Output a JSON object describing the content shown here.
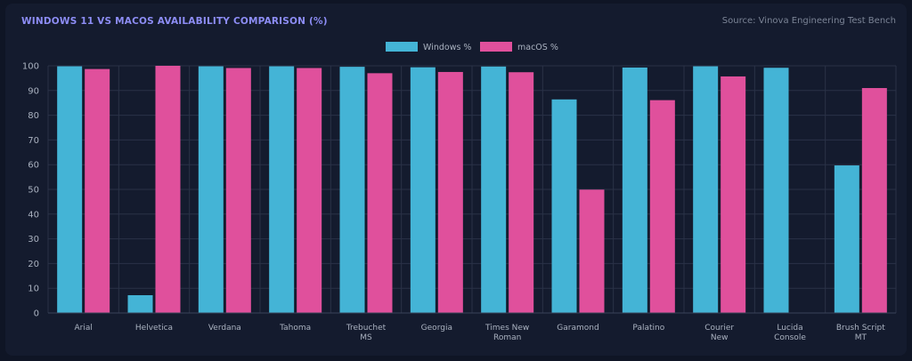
{
  "header": {
    "title": "WINDOWS 11 VS MACOS AVAILABILITY COMPARISON (%)",
    "source": "Source: Vinova Engineering Test Bench"
  },
  "colors": {
    "background": "#141b2e",
    "windows": "#44b4d6",
    "macos": "#e0509c",
    "grid": "#2a3247",
    "text": "#aab2c0",
    "title": "#8d8df5"
  },
  "chart_data": {
    "type": "bar",
    "title": "WINDOWS 11 VS MACOS AVAILABILITY COMPARISON (%)",
    "xlabel": "",
    "ylabel": "",
    "ylim": [
      0,
      100
    ],
    "yticks": [
      0,
      10,
      20,
      30,
      40,
      50,
      60,
      70,
      80,
      90,
      100
    ],
    "grid": true,
    "legend_position": "top-center",
    "categories": [
      [
        "Arial"
      ],
      [
        "Helvetica"
      ],
      [
        "Verdana"
      ],
      [
        "Tahoma"
      ],
      [
        "Trebuchet",
        "MS"
      ],
      [
        "Georgia"
      ],
      [
        "Times New",
        "Roman"
      ],
      [
        "Garamond"
      ],
      [
        "Palatino"
      ],
      [
        "Courier",
        "New"
      ],
      [
        "Lucida",
        "Console"
      ],
      [
        "Brush Script",
        "MT"
      ]
    ],
    "series": [
      {
        "name": "Windows %",
        "color": "#44b4d6",
        "values": [
          99.8,
          7.2,
          99.8,
          99.8,
          99.6,
          99.4,
          99.7,
          86.4,
          99.3,
          99.8,
          99.2,
          59.7
        ]
      },
      {
        "name": "macOS %",
        "color": "#e0509c",
        "values": [
          98.7,
          100,
          99.1,
          99.1,
          97.0,
          97.5,
          97.4,
          49.9,
          86.1,
          95.7,
          0,
          91.0
        ]
      }
    ]
  }
}
